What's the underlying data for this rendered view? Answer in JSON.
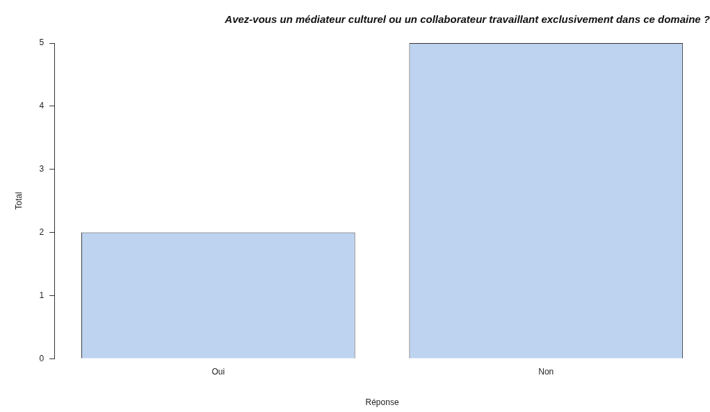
{
  "chart_data": {
    "type": "bar",
    "title": "Avez-vous un médiateur culturel ou un collaborateur travaillant exclusivement dans ce domaine ?",
    "xlabel": "Réponse",
    "ylabel": "Total",
    "categories": [
      "Oui",
      "Non"
    ],
    "values": [
      2,
      5
    ],
    "color": "#bdd3f0",
    "ylim": [
      0,
      5
    ],
    "yticks": [
      0,
      1,
      2,
      3,
      4,
      5
    ],
    "grid": false,
    "legend": false
  }
}
